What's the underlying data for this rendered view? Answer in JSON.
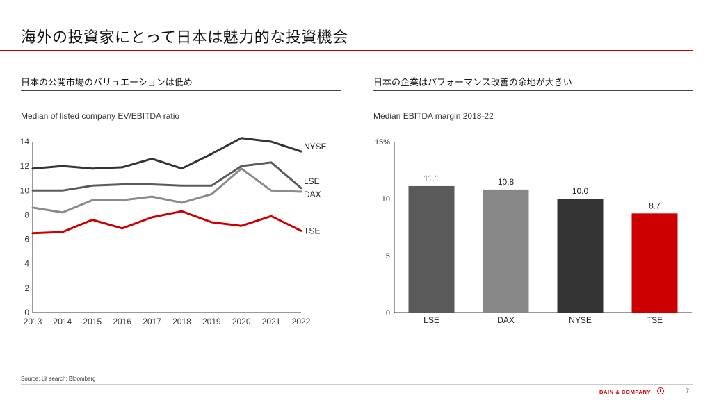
{
  "header": {
    "title": "海外の投資家にとって日本は魅力的な投資機会"
  },
  "left_panel": {
    "section_title": "日本の公開市場のバリュエーションは低め",
    "subtitle": "Median of listed company EV/EBITDA ratio"
  },
  "right_panel": {
    "section_title": "日本の企業はパフォーマンス改善の余地が大きい",
    "subtitle": "Median EBITDA margin 2018-22"
  },
  "footer": {
    "source": "Source: Lit search; Bloomberg",
    "brand": "BAIN & COMPANY",
    "page_number": "7"
  },
  "chart_data": [
    {
      "type": "line",
      "title": "Median of listed company EV/EBITDA ratio",
      "x": [
        2013,
        2014,
        2015,
        2016,
        2017,
        2018,
        2019,
        2020,
        2021,
        2022
      ],
      "ylim": [
        0,
        14
      ],
      "yticks": [
        0,
        2,
        4,
        6,
        8,
        10,
        12,
        14
      ],
      "grid": false,
      "legend": "inline labels at line ends (right)",
      "series": [
        {
          "name": "NYSE",
          "color": "#333333",
          "values": [
            11.8,
            12.0,
            11.8,
            11.9,
            12.6,
            11.8,
            13.0,
            14.3,
            14.0,
            13.2
          ]
        },
        {
          "name": "LSE",
          "color": "#5a5a5a",
          "values": [
            10.0,
            10.0,
            10.4,
            10.5,
            10.5,
            10.4,
            10.4,
            12.0,
            12.3,
            10.2
          ]
        },
        {
          "name": "DAX",
          "color": "#8a8a8a",
          "values": [
            8.6,
            8.2,
            9.2,
            9.2,
            9.5,
            9.0,
            9.7,
            11.8,
            10.0,
            9.9
          ]
        },
        {
          "name": "TSE",
          "color": "#cc0000",
          "values": [
            6.5,
            6.6,
            7.6,
            6.9,
            7.8,
            8.3,
            7.4,
            7.1,
            7.9,
            6.7
          ]
        }
      ]
    },
    {
      "type": "bar",
      "title": "Median EBITDA margin 2018-22",
      "categories": [
        "LSE",
        "DAX",
        "NYSE",
        "TSE"
      ],
      "values": [
        11.1,
        10.8,
        10.0,
        8.7
      ],
      "value_labels": [
        "11.1",
        "10.8",
        "10.0",
        "8.7"
      ],
      "colors": [
        "#5a5a5a",
        "#878787",
        "#333333",
        "#cc0000"
      ],
      "ylim": [
        0,
        15
      ],
      "yticks": [
        0,
        5,
        10,
        15
      ],
      "ytick_labels": [
        "0",
        "5",
        "10",
        "15%"
      ],
      "grid": false
    }
  ]
}
